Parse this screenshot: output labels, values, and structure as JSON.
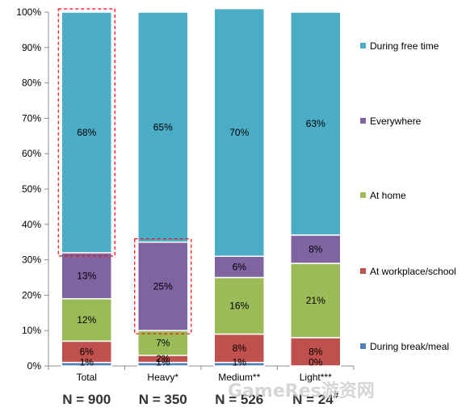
{
  "chart_data": {
    "type": "bar",
    "stacked": true,
    "percent": true,
    "categories": [
      "Total",
      "Heavy*",
      "Medium**",
      "Light***"
    ],
    "sample_sizes": [
      "N = 900",
      "N = 350",
      "N = 526",
      "N = 24"
    ],
    "sample_size_footnote": "#",
    "footnote_on_category": 3,
    "series": [
      {
        "name": "During break/meal",
        "color": "#4f81bd",
        "values": [
          1,
          1,
          1,
          0
        ],
        "labels": [
          "1%",
          "1%",
          "1%",
          "0%"
        ]
      },
      {
        "name": "At workplace/school",
        "color": "#c0504d",
        "values": [
          6,
          2,
          8,
          8
        ],
        "labels": [
          "6%",
          "2%",
          "8%",
          "8%"
        ]
      },
      {
        "name": "At home",
        "color": "#9bbb59",
        "values": [
          12,
          7,
          16,
          21
        ],
        "labels": [
          "12%",
          "7%",
          "16%",
          "21%"
        ]
      },
      {
        "name": "Everywhere",
        "color": "#8064a2",
        "values": [
          13,
          25,
          6,
          8
        ],
        "labels": [
          "13%",
          "25%",
          "6%",
          "8%"
        ]
      },
      {
        "name": "During free time",
        "color": "#4bacc6",
        "values": [
          68,
          65,
          70,
          63
        ],
        "labels": [
          "68%",
          "65%",
          "70%",
          "63%"
        ]
      }
    ],
    "ylim": [
      0,
      100
    ],
    "yticks": [
      "0%",
      "10%",
      "20%",
      "30%",
      "40%",
      "50%",
      "60%",
      "70%",
      "80%",
      "90%",
      "100%"
    ],
    "highlight_boxes": [
      {
        "category": 0,
        "series": "During free time",
        "color": "#ff0000"
      },
      {
        "category": 1,
        "series": "Everywhere",
        "color": "#ff0000"
      }
    ],
    "legend_position": "right",
    "grid": false
  },
  "watermark": "GameRes游资网"
}
